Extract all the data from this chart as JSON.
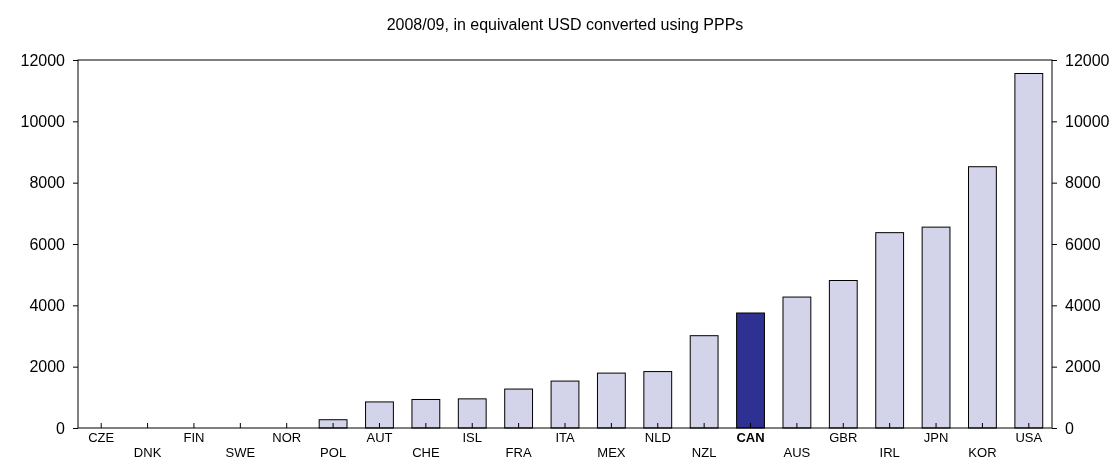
{
  "chart_data": {
    "type": "bar",
    "title": "2008/09, in equivalent USD converted using PPPs",
    "categories": [
      "CZE",
      "DNK",
      "FIN",
      "SWE",
      "NOR",
      "POL",
      "AUT",
      "CHE",
      "ISL",
      "FRA",
      "ITA",
      "MEX",
      "NLD",
      "NZL",
      "CAN",
      "AUS",
      "GBR",
      "IRL",
      "JPN",
      "KOR",
      "USA"
    ],
    "values": [
      null,
      null,
      null,
      null,
      null,
      270,
      850,
      930,
      950,
      1270,
      1530,
      1790,
      1840,
      3010,
      3750,
      4270,
      4810,
      6370,
      6550,
      8520,
      11560
    ],
    "colors": [
      "#d3d3ea",
      "#d3d3ea",
      "#d3d3ea",
      "#d3d3ea",
      "#d3d3ea",
      "#d3d3ea",
      "#d3d3ea",
      "#d3d3ea",
      "#d3d3ea",
      "#d3d3ea",
      "#d3d3ea",
      "#d3d3ea",
      "#d3d3ea",
      "#d3d3ea",
      "#2e3192",
      "#d3d3ea",
      "#d3d3ea",
      "#d3d3ea",
      "#d3d3ea",
      "#d3d3ea",
      "#d3d3ea"
    ],
    "ylim": [
      0,
      12000
    ],
    "yticks": [
      0,
      2000,
      4000,
      6000,
      8000,
      10000,
      12000
    ],
    "y2lim": [
      0,
      12000
    ],
    "y2ticks": [
      0,
      2000,
      4000,
      6000,
      8000,
      10000,
      12000
    ],
    "grid": false
  }
}
